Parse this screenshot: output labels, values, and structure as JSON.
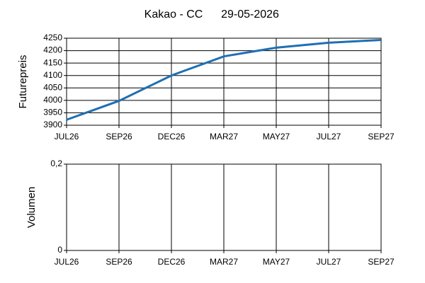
{
  "chart_data": [
    {
      "type": "line",
      "title": "Kakao - CC",
      "subtitle": "29-05-2026",
      "y_label": "Futurepreis",
      "categories": [
        "JUL26",
        "SEP26",
        "DEC26",
        "MAR27",
        "MAY27",
        "JUL27",
        "SEP27"
      ],
      "series": [
        {
          "name": "Futurepreis",
          "color": "#1f6fb4",
          "values": [
            3922,
            3998,
            4100,
            4177,
            4212,
            4232,
            4243
          ]
        }
      ],
      "ylim": [
        3900,
        4250
      ],
      "yticks": [
        3900,
        3950,
        4000,
        4050,
        4100,
        4150,
        4200,
        4250
      ],
      "grid": true
    },
    {
      "type": "line",
      "y_label": "Volumen",
      "categories": [
        "JUL26",
        "SEP26",
        "DEC26",
        "MAR27",
        "MAY27",
        "JUL27",
        "SEP27"
      ],
      "series": [],
      "ylim": [
        0,
        0.2
      ],
      "yticks": [
        0,
        {
          "value": 0.2,
          "label": "0,2"
        }
      ],
      "grid": true
    }
  ]
}
